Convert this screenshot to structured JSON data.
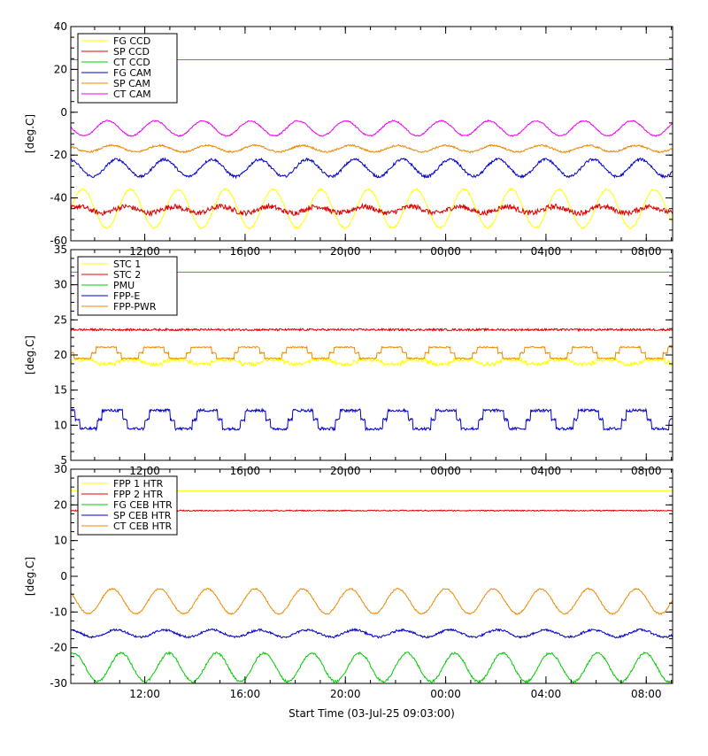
{
  "chart_data": [
    {
      "type": "line",
      "ylabel": "[deg.C]",
      "ylim": [
        -60,
        40
      ],
      "yticks": [
        -60,
        -40,
        -20,
        0,
        20,
        40
      ],
      "x_tick_labels": [
        "12:00",
        "16:00",
        "20:00",
        "00:00",
        "04:00",
        "08:00"
      ],
      "x_tick_hours": [
        2.95,
        6.95,
        10.95,
        14.95,
        18.95,
        22.95
      ],
      "x_hours_range": [
        0,
        24
      ],
      "legend_position": "top-left",
      "series": [
        {
          "name": "FG CCD",
          "color": "#ffff00",
          "shape": "sine",
          "mean": -45,
          "amplitude": 9,
          "period_hours": 1.9,
          "noise": 0.5
        },
        {
          "name": "SP CCD",
          "color": "#dd0000",
          "shape": "sine",
          "mean": -45.5,
          "amplitude": 1.5,
          "period_hours": 1.9,
          "noise": 1.2
        },
        {
          "name": "CT CCD",
          "color": "#00cc00",
          "shape": "flat",
          "mean": 24.5
        },
        {
          "name": "FG CAM",
          "color": "#0000cc",
          "shape": "sine",
          "mean": -26,
          "amplitude": 4,
          "period_hours": 1.9,
          "noise": 0.6
        },
        {
          "name": "SP CAM",
          "color": "#ee8800",
          "shape": "sine",
          "mean": -17,
          "amplitude": 1.5,
          "period_hours": 1.9,
          "noise": 0.4
        },
        {
          "name": "CT CAM",
          "color": "#ee00ee",
          "shape": "sine",
          "mean": -7.5,
          "amplitude": 3.5,
          "period_hours": 1.9,
          "noise": 0.3
        }
      ]
    },
    {
      "type": "line",
      "ylabel": "[deg.C]",
      "ylim": [
        5,
        35
      ],
      "yticks": [
        5,
        10,
        15,
        20,
        25,
        30,
        35
      ],
      "x_tick_labels": [
        "12:00",
        "16:00",
        "20:00",
        "00:00",
        "04:00",
        "08:00"
      ],
      "x_tick_hours": [
        2.95,
        6.95,
        10.95,
        14.95,
        18.95,
        22.95
      ],
      "x_hours_range": [
        0,
        24
      ],
      "legend_position": "top-left",
      "series": [
        {
          "name": "STC 1",
          "color": "#ffff00",
          "shape": "steps",
          "mean": 19,
          "amplitude": 0.3,
          "period_hours": 1.9,
          "noise": 0.25
        },
        {
          "name": "STC 2",
          "color": "#dd0000",
          "shape": "flat",
          "mean": 23.6,
          "noise": 0.15
        },
        {
          "name": "PMU",
          "color": "#00cc00",
          "shape": "flat",
          "mean": 31.8
        },
        {
          "name": "FPP-E",
          "color": "#0000cc",
          "shape": "steps",
          "mean": 10.8,
          "amplitude": 1.3,
          "period_hours": 1.9,
          "noise": 0.2
        },
        {
          "name": "FPP-PWR",
          "color": "#ee8800",
          "shape": "steps",
          "mean": 20.3,
          "amplitude": 0.8,
          "period_hours": 1.9,
          "noise": 0.1
        }
      ]
    },
    {
      "type": "line",
      "xlabel": "Start Time (03-Jul-25 09:03:00)",
      "ylabel": "[deg.C]",
      "ylim": [
        -30,
        30
      ],
      "yticks": [
        -30,
        -20,
        -10,
        0,
        10,
        20,
        30
      ],
      "x_tick_labels": [
        "12:00",
        "16:00",
        "20:00",
        "00:00",
        "04:00",
        "08:00"
      ],
      "x_tick_hours": [
        2.95,
        6.95,
        10.95,
        14.95,
        18.95,
        22.95
      ],
      "x_hours_range": [
        0,
        24
      ],
      "legend_position": "top-left",
      "series": [
        {
          "name": "FPP 1 HTR",
          "color": "#ffff00",
          "shape": "flat",
          "mean": 24
        },
        {
          "name": "FPP 2 HTR",
          "color": "#dd0000",
          "shape": "flat",
          "mean": 18.4,
          "noise": 0.15
        },
        {
          "name": "FG CEB HTR",
          "color": "#00cc00",
          "shape": "sine",
          "mean": -25.5,
          "amplitude": 4,
          "period_hours": 1.9,
          "noise": 0.3
        },
        {
          "name": "SP CEB HTR",
          "color": "#0000cc",
          "shape": "sine",
          "mean": -16,
          "amplitude": 1,
          "period_hours": 1.9,
          "noise": 0.3
        },
        {
          "name": "CT CEB HTR",
          "color": "#ee8800",
          "shape": "sine",
          "mean": -7,
          "amplitude": 3.5,
          "period_hours": 1.9,
          "noise": 0.2
        }
      ]
    }
  ]
}
